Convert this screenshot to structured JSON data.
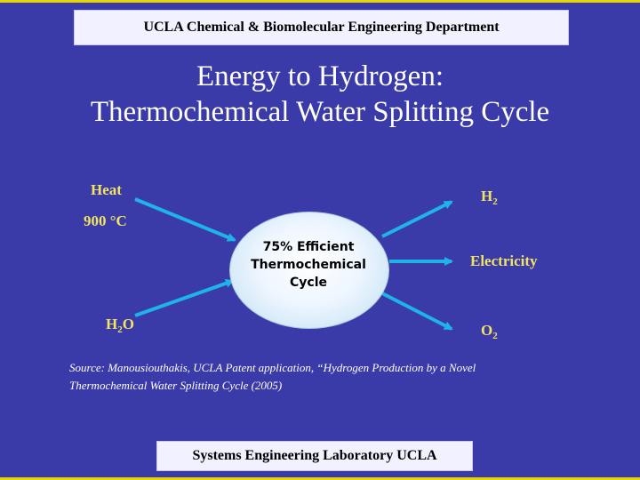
{
  "header": {
    "department": "UCLA Chemical & Biomolecular Engineering Department"
  },
  "title": {
    "line1": "Energy to Hydrogen:",
    "line2": "Thermochemical Water Splitting Cycle"
  },
  "inputs": {
    "heat": "Heat",
    "temperature": "900 °C",
    "water": {
      "base": "H",
      "sub": "2",
      "rest": "O"
    }
  },
  "outputs": {
    "hydrogen": {
      "base": "H",
      "sub": "2"
    },
    "electricity": "Electricity",
    "oxygen": {
      "base": "O",
      "sub": "2"
    }
  },
  "cycle": {
    "line1": "75% Efficient",
    "line2": "Thermochemical",
    "line3": "Cycle"
  },
  "source": {
    "line1": "Source: Manousiouthakis, UCLA Patent application, “Hydrogen Production by a Novel",
    "line2": "Thermochemical Water Splitting Cycle (2005)"
  },
  "footer": {
    "lab": "Systems Engineering Laboratory UCLA"
  },
  "colors": {
    "background": "#3a3aa8",
    "accent_border": "#e8d400",
    "label_yellow": "#f2e45f",
    "arrow_cyan": "#1fb4e8",
    "banner": "#f1f1ff"
  }
}
